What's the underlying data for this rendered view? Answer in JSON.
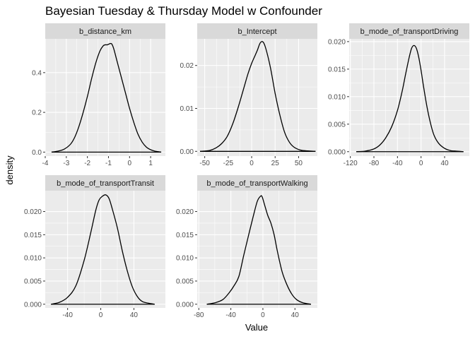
{
  "chart_data": {
    "type": "line",
    "title": "Bayesian Tuesday & Thursday Model w Confounder",
    "xlabel": "Value",
    "ylabel": "density",
    "grid": true,
    "legend": "none",
    "line_color": "#000000",
    "panel_background": "#ebebeb",
    "strip_background": "#d9d9d9",
    "facets": [
      {
        "label": "b_distance_km",
        "xlim": [
          -4,
          1.7
        ],
        "ylim": [
          -0.02,
          0.57
        ],
        "xticks": [
          -4,
          -3,
          -2,
          -1,
          0,
          1
        ],
        "yticks": [
          0.0,
          0.2,
          0.4
        ],
        "ytick_labels": [
          "0.0",
          "0.2",
          "0.4"
        ],
        "x": [
          -3.7,
          -3.4,
          -3.1,
          -2.8,
          -2.6,
          -2.4,
          -2.2,
          -2.0,
          -1.8,
          -1.6,
          -1.4,
          -1.25,
          -1.15,
          -1.05,
          -0.95,
          -0.85,
          -0.75,
          -0.6,
          -0.4,
          -0.2,
          0.0,
          0.2,
          0.4,
          0.6,
          0.8,
          1.0,
          1.2,
          1.5
        ],
        "y": [
          0.0,
          0.005,
          0.015,
          0.04,
          0.075,
          0.13,
          0.2,
          0.28,
          0.37,
          0.45,
          0.51,
          0.535,
          0.54,
          0.54,
          0.545,
          0.545,
          0.52,
          0.46,
          0.38,
          0.3,
          0.22,
          0.15,
          0.09,
          0.05,
          0.025,
          0.012,
          0.005,
          0.0
        ]
      },
      {
        "label": "b_Intercept",
        "xlim": [
          -58,
          70
        ],
        "ylim": [
          -0.0011,
          0.0262
        ],
        "xticks": [
          -50,
          -25,
          0,
          25,
          50
        ],
        "yticks": [
          0.0,
          0.01,
          0.02
        ],
        "ytick_labels": [
          "0.00",
          "0.01",
          "0.02"
        ],
        "x": [
          -55,
          -45,
          -38,
          -32,
          -26,
          -20,
          -14,
          -8,
          -4,
          0,
          3,
          6,
          9,
          12,
          15,
          20,
          25,
          30,
          35,
          40,
          45,
          52,
          60,
          68
        ],
        "y": [
          0.0,
          0.0002,
          0.0008,
          0.0018,
          0.0035,
          0.0065,
          0.0105,
          0.015,
          0.018,
          0.0205,
          0.022,
          0.0235,
          0.0252,
          0.0255,
          0.024,
          0.0195,
          0.0135,
          0.0085,
          0.0045,
          0.0022,
          0.001,
          0.0003,
          0.0001,
          0.0
        ]
      },
      {
        "label": "b_mode_of_transportDriving",
        "xlim": [
          -122,
          82
        ],
        "ylim": [
          -0.0008,
          0.0205
        ],
        "xticks": [
          -120,
          -80,
          -40,
          0,
          40
        ],
        "yticks": [
          0.0,
          0.005,
          0.01,
          0.015,
          0.02
        ],
        "ytick_labels": [
          "0.000",
          "0.005",
          "0.010",
          "0.015",
          "0.020"
        ],
        "x": [
          -110,
          -95,
          -80,
          -70,
          -60,
          -50,
          -40,
          -32,
          -26,
          -20,
          -16,
          -12,
          -8,
          -4,
          0,
          4,
          10,
          16,
          22,
          30,
          40,
          50,
          60,
          72
        ],
        "y": [
          0.0,
          0.0001,
          0.0005,
          0.0012,
          0.0025,
          0.0045,
          0.0075,
          0.011,
          0.0142,
          0.0172,
          0.0188,
          0.0193,
          0.0188,
          0.0172,
          0.0148,
          0.012,
          0.0082,
          0.0052,
          0.003,
          0.0015,
          0.0006,
          0.0002,
          0.0001,
          0.0
        ]
      },
      {
        "label": "b_mode_of_transportTransit",
        "xlim": [
          -67,
          78
        ],
        "ylim": [
          -0.0008,
          0.0245
        ],
        "xticks": [
          -40,
          0,
          40
        ],
        "yticks": [
          0.0,
          0.005,
          0.01,
          0.015,
          0.02
        ],
        "ytick_labels": [
          "0.000",
          "0.005",
          "0.010",
          "0.015",
          "0.020"
        ],
        "x": [
          -60,
          -50,
          -40,
          -30,
          -20,
          -12,
          -6,
          -2,
          2,
          6,
          10,
          14,
          20,
          26,
          32,
          38,
          44,
          50,
          58,
          65
        ],
        "y": [
          0.0,
          0.0004,
          0.0015,
          0.004,
          0.0095,
          0.0155,
          0.0203,
          0.0225,
          0.0233,
          0.0236,
          0.0228,
          0.0205,
          0.0165,
          0.0115,
          0.0072,
          0.0038,
          0.0017,
          0.0006,
          0.0002,
          0.0
        ]
      },
      {
        "label": "b_mode_of_transportWalking",
        "xlim": [
          -82,
          68
        ],
        "ylim": [
          -0.0008,
          0.0245
        ],
        "xticks": [
          -80,
          -40,
          0,
          40
        ],
        "yticks": [
          0.0,
          0.005,
          0.01,
          0.015,
          0.02
        ],
        "ytick_labels": [
          "0.000",
          "0.005",
          "0.010",
          "0.015",
          "0.020"
        ],
        "x": [
          -70,
          -60,
          -50,
          -42,
          -36,
          -30,
          -24,
          -18,
          -12,
          -7,
          -3,
          -1,
          2,
          6,
          10,
          14,
          18,
          24,
          30,
          36,
          42,
          50,
          60
        ],
        "y": [
          0.0,
          0.0003,
          0.001,
          0.0025,
          0.004,
          0.006,
          0.0105,
          0.0148,
          0.019,
          0.0222,
          0.0233,
          0.0232,
          0.0215,
          0.0192,
          0.0175,
          0.015,
          0.0115,
          0.007,
          0.0042,
          0.0022,
          0.001,
          0.0003,
          0.0
        ]
      }
    ]
  }
}
